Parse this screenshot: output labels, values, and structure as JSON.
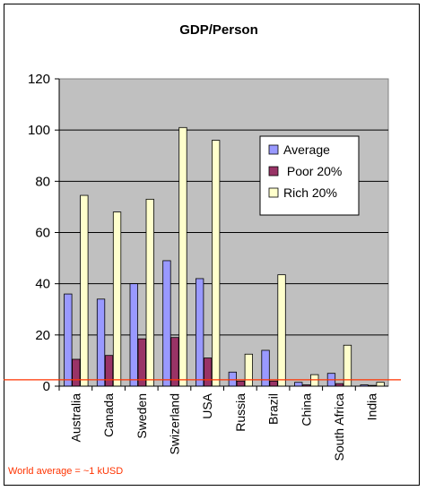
{
  "chart_data": {
    "type": "bar",
    "title": "GDP/Person",
    "xlabel": "",
    "ylabel": "",
    "ylim": [
      0,
      120
    ],
    "yticks": [
      "0",
      "20",
      "40",
      "60",
      "80",
      "100",
      "120"
    ],
    "grid": true,
    "legend_position": "right",
    "categories": [
      "Australia",
      "Canada",
      "Sweden",
      "Swizerland",
      "USA",
      "Russia",
      "Brazil",
      "China",
      "South Africa",
      "India"
    ],
    "series": [
      {
        "name": "Average",
        "color": "#9999ff",
        "values": [
          36,
          34,
          40,
          49,
          42,
          5.5,
          14,
          1.5,
          5,
          0.5
        ]
      },
      {
        "name": " Poor 20%",
        "color": "#993366",
        "values": [
          10.5,
          12,
          18.5,
          19,
          11,
          2,
          2,
          0.5,
          1,
          0.3
        ]
      },
      {
        "name": "Rich 20%",
        "color": "#ffffcc",
        "values": [
          74.5,
          68,
          73,
          101,
          96,
          12.5,
          43.5,
          4.5,
          16,
          1.5
        ]
      }
    ],
    "reference_line": {
      "value": 2.5,
      "color": "#ff3300"
    },
    "annotation": "World average = ~1 kUSD",
    "plot_background": "#c0c0c0"
  }
}
